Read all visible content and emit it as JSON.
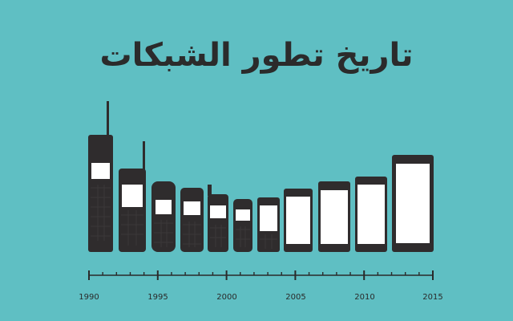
{
  "title": "تاريخ تطور الشبكات",
  "colors": {
    "background": "#5fbfc3",
    "phone": "#2f2c2d",
    "screen": "#ffffff",
    "axis": "#2a2a2a"
  },
  "timeline": {
    "start_year": 1990,
    "end_year": 2015,
    "labels": [
      "1990",
      "1995",
      "2000",
      "2005",
      "2010",
      "2015"
    ]
  },
  "phones": [
    {
      "name": "brick-phone",
      "year": 1990
    },
    {
      "name": "flip-phone",
      "year": 1993
    },
    {
      "name": "candybar-phone-1",
      "year": 1995
    },
    {
      "name": "candybar-phone-2",
      "year": 1997
    },
    {
      "name": "candybar-phone-3",
      "year": 1999
    },
    {
      "name": "candybar-phone-4",
      "year": 2001
    },
    {
      "name": "candybar-phone-5",
      "year": 2003
    },
    {
      "name": "smartphone-1",
      "year": 2005
    },
    {
      "name": "smartphone-2",
      "year": 2008
    },
    {
      "name": "smartphone-3",
      "year": 2010
    },
    {
      "name": "smartphone-4",
      "year": 2013
    }
  ]
}
